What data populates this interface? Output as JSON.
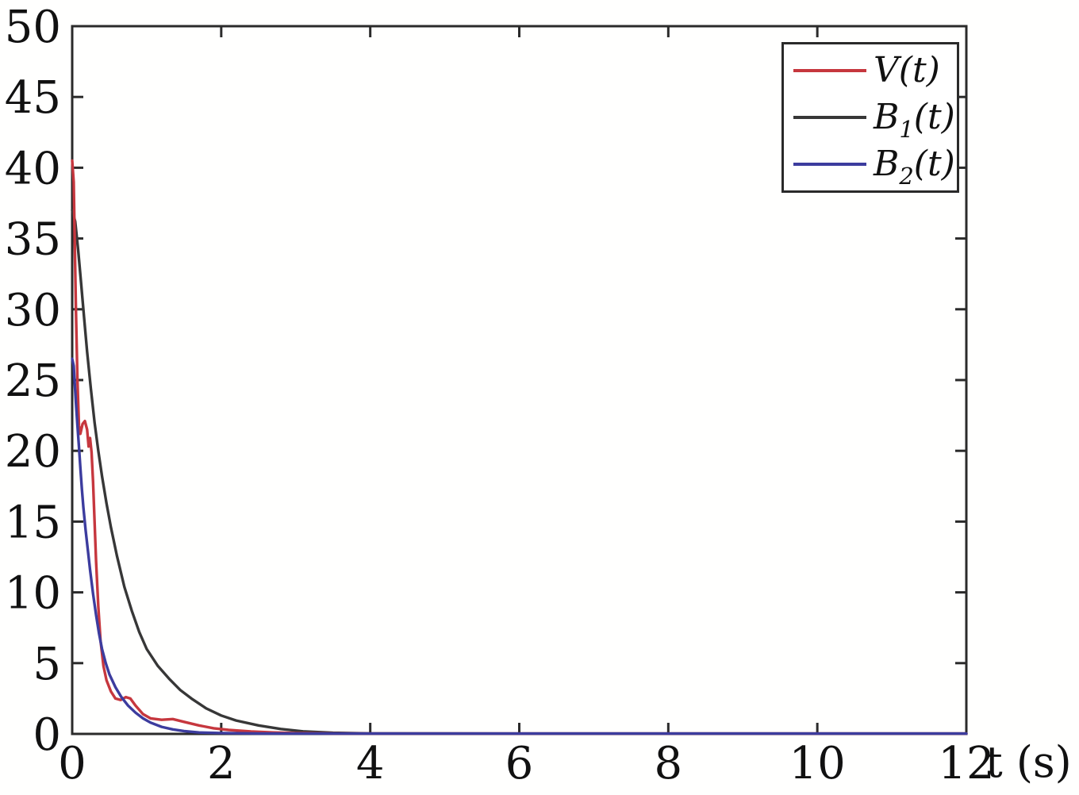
{
  "chart_data": {
    "type": "line",
    "title": "",
    "xlabel": "t (s)",
    "ylabel": "",
    "xlim": [
      0,
      12
    ],
    "ylim": [
      0,
      50
    ],
    "xticks": [
      0,
      2,
      4,
      6,
      8,
      10,
      12
    ],
    "yticks": [
      0,
      5,
      10,
      15,
      20,
      25,
      30,
      35,
      40,
      45,
      50
    ],
    "grid": false,
    "legend_position": "top-right",
    "frame_color": "#2b2b2b",
    "text_color": "#111111",
    "series": [
      {
        "name": "V(t)",
        "label_pre": "V",
        "label_sub": "",
        "label_post": "(t)",
        "color": "#c6373e",
        "points": [
          [
            0,
            40.5
          ],
          [
            0.02,
            39.0
          ],
          [
            0.05,
            30.0
          ],
          [
            0.07,
            25.0
          ],
          [
            0.09,
            21.8
          ],
          [
            0.11,
            21.2
          ],
          [
            0.14,
            21.9
          ],
          [
            0.17,
            22.1
          ],
          [
            0.2,
            21.5
          ],
          [
            0.22,
            20.3
          ],
          [
            0.24,
            20.9
          ],
          [
            0.26,
            19.9
          ],
          [
            0.28,
            17.8
          ],
          [
            0.3,
            15.0
          ],
          [
            0.32,
            12.2
          ],
          [
            0.35,
            9.0
          ],
          [
            0.38,
            6.6
          ],
          [
            0.42,
            4.8
          ],
          [
            0.46,
            3.8
          ],
          [
            0.52,
            3.0
          ],
          [
            0.58,
            2.5
          ],
          [
            0.65,
            2.4
          ],
          [
            0.72,
            2.6
          ],
          [
            0.78,
            2.5
          ],
          [
            0.85,
            2.0
          ],
          [
            0.95,
            1.4
          ],
          [
            1.05,
            1.1
          ],
          [
            1.2,
            1.0
          ],
          [
            1.35,
            1.05
          ],
          [
            1.5,
            0.85
          ],
          [
            1.7,
            0.6
          ],
          [
            1.9,
            0.4
          ],
          [
            2.1,
            0.28
          ],
          [
            2.4,
            0.17
          ],
          [
            2.7,
            0.1
          ],
          [
            3.0,
            0.06
          ],
          [
            3.5,
            0.03
          ],
          [
            4.0,
            0.02
          ],
          [
            12,
            0.02
          ]
        ]
      },
      {
        "name": "B1(t)",
        "label_pre": "B",
        "label_sub": "1",
        "label_post": "(t)",
        "color": "#373737",
        "points": [
          [
            0,
            37.0
          ],
          [
            0.04,
            36.2
          ],
          [
            0.08,
            34.2
          ],
          [
            0.12,
            31.8
          ],
          [
            0.16,
            29.4
          ],
          [
            0.2,
            27.0
          ],
          [
            0.25,
            24.4
          ],
          [
            0.3,
            22.0
          ],
          [
            0.35,
            20.0
          ],
          [
            0.4,
            18.2
          ],
          [
            0.46,
            16.3
          ],
          [
            0.52,
            14.6
          ],
          [
            0.6,
            12.6
          ],
          [
            0.7,
            10.4
          ],
          [
            0.8,
            8.7
          ],
          [
            0.9,
            7.2
          ],
          [
            1.0,
            6.0
          ],
          [
            1.15,
            4.8
          ],
          [
            1.3,
            3.9
          ],
          [
            1.45,
            3.1
          ],
          [
            1.6,
            2.5
          ],
          [
            1.8,
            1.8
          ],
          [
            2.0,
            1.3
          ],
          [
            2.2,
            0.95
          ],
          [
            2.5,
            0.6
          ],
          [
            2.8,
            0.35
          ],
          [
            3.1,
            0.18
          ],
          [
            3.5,
            0.08
          ],
          [
            4.0,
            0.03
          ],
          [
            12,
            0.02
          ]
        ]
      },
      {
        "name": "B2(t)",
        "label_pre": "B",
        "label_sub": "2",
        "label_post": "(t)",
        "color": "#3c3c9e",
        "points": [
          [
            0,
            26.5
          ],
          [
            0.02,
            26.0
          ],
          [
            0.05,
            23.4
          ],
          [
            0.07,
            21.8
          ],
          [
            0.09,
            20.3
          ],
          [
            0.11,
            18.8
          ],
          [
            0.13,
            17.3
          ],
          [
            0.15,
            16.0
          ],
          [
            0.18,
            14.4
          ],
          [
            0.21,
            13.0
          ],
          [
            0.24,
            11.6
          ],
          [
            0.28,
            9.9
          ],
          [
            0.32,
            8.4
          ],
          [
            0.36,
            7.1
          ],
          [
            0.4,
            6.0
          ],
          [
            0.45,
            5.0
          ],
          [
            0.5,
            4.2
          ],
          [
            0.58,
            3.3
          ],
          [
            0.66,
            2.6
          ],
          [
            0.75,
            2.0
          ],
          [
            0.85,
            1.5
          ],
          [
            0.95,
            1.1
          ],
          [
            1.05,
            0.8
          ],
          [
            1.2,
            0.5
          ],
          [
            1.35,
            0.32
          ],
          [
            1.5,
            0.2
          ],
          [
            1.7,
            0.1
          ],
          [
            2.0,
            0.06
          ],
          [
            2.5,
            0.03
          ],
          [
            3.0,
            0.02
          ],
          [
            12,
            0.02
          ]
        ]
      }
    ]
  }
}
